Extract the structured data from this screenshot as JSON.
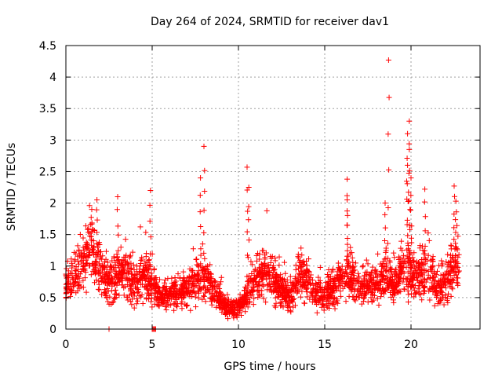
{
  "chart_data": {
    "type": "scatter",
    "title": "Day 264 of 2024, SRMTID for receiver dav1",
    "xlabel": "GPS time / hours",
    "ylabel": "SRMTID / TECUs",
    "xlim": [
      0,
      24
    ],
    "ylim": [
      0,
      4.5
    ],
    "xticks": [
      0,
      5,
      10,
      15,
      20
    ],
    "yticks": [
      0,
      0.5,
      1,
      1.5,
      2,
      2.5,
      3,
      3.5,
      4,
      4.5
    ],
    "xtick_labels": [
      "0",
      "5",
      "10",
      "15",
      "20"
    ],
    "ytick_labels": [
      "0",
      "0.5",
      "1",
      "1.5",
      "2",
      "2.5",
      "3",
      "3.5",
      "4",
      "4.5"
    ],
    "grid": true,
    "marker": "+",
    "color": "#ff0000",
    "series": [
      {
        "name": "SRMTID",
        "envelope_note": "typical level (approximate) by hour; scatter points spread around it",
        "baseline": [
          [
            0,
            0.75
          ],
          [
            0.5,
            0.85
          ],
          [
            1,
            1.05
          ],
          [
            1.5,
            1.2
          ],
          [
            2,
            0.9
          ],
          [
            2.5,
            0.75
          ],
          [
            3,
            0.85
          ],
          [
            3.5,
            0.85
          ],
          [
            4,
            0.75
          ],
          [
            4.5,
            0.85
          ],
          [
            5,
            0.7
          ],
          [
            5.5,
            0.5
          ],
          [
            6,
            0.55
          ],
          [
            6.5,
            0.55
          ],
          [
            7,
            0.6
          ],
          [
            7.5,
            0.75
          ],
          [
            8,
            0.8
          ],
          [
            8.5,
            0.65
          ],
          [
            9,
            0.45
          ],
          [
            9.5,
            0.3
          ],
          [
            10,
            0.35
          ],
          [
            10.5,
            0.5
          ],
          [
            11,
            0.8
          ],
          [
            11.5,
            0.85
          ],
          [
            12,
            0.8
          ],
          [
            12.5,
            0.6
          ],
          [
            13,
            0.5
          ],
          [
            13.5,
            0.85
          ],
          [
            14,
            0.75
          ],
          [
            14.5,
            0.55
          ],
          [
            15,
            0.55
          ],
          [
            15.5,
            0.65
          ],
          [
            16,
            0.85
          ],
          [
            16.5,
            0.8
          ],
          [
            17,
            0.65
          ],
          [
            17.5,
            0.65
          ],
          [
            18,
            0.75
          ],
          [
            18.5,
            0.8
          ],
          [
            19,
            0.7
          ],
          [
            19.5,
            0.95
          ],
          [
            20,
            0.85
          ],
          [
            20.5,
            0.85
          ],
          [
            21,
            0.95
          ],
          [
            21.5,
            0.65
          ],
          [
            22,
            0.7
          ],
          [
            22.5,
            1.0
          ],
          [
            22.8,
            1.1
          ]
        ],
        "spikes": [
          {
            "x": 1.5,
            "y": 1.9
          },
          {
            "x": 1.8,
            "y": 2.05
          },
          {
            "x": 3.0,
            "y": 2.1
          },
          {
            "x": 4.9,
            "y": 2.2
          },
          {
            "x": 8.0,
            "y": 2.9
          },
          {
            "x": 7.8,
            "y": 2.4
          },
          {
            "x": 10.5,
            "y": 2.57
          },
          {
            "x": 10.6,
            "y": 2.25
          },
          {
            "x": 16.3,
            "y": 2.38
          },
          {
            "x": 16.3,
            "y": 2.05
          },
          {
            "x": 18.7,
            "y": 4.27
          },
          {
            "x": 18.5,
            "y": 2.0
          },
          {
            "x": 19.9,
            "y": 3.3
          },
          {
            "x": 19.8,
            "y": 3.1
          },
          {
            "x": 19.9,
            "y": 2.85
          },
          {
            "x": 19.8,
            "y": 2.6
          },
          {
            "x": 20.0,
            "y": 2.4
          },
          {
            "x": 20.8,
            "y": 2.22
          },
          {
            "x": 22.5,
            "y": 2.27
          },
          {
            "x": 22.6,
            "y": 2.03
          }
        ],
        "near_zero": [
          {
            "x": 2.5,
            "y": 0.0
          },
          {
            "x": 5.0,
            "y": 0.0
          },
          {
            "x": 5.05,
            "y": 0.0
          },
          {
            "x": 5.1,
            "y": 0.0
          },
          {
            "x": 5.15,
            "y": 0.0
          },
          {
            "x": 5.2,
            "y": 0.0
          }
        ],
        "range_min": 0.0,
        "range_max": 4.27,
        "x_end": 22.8
      }
    ]
  }
}
